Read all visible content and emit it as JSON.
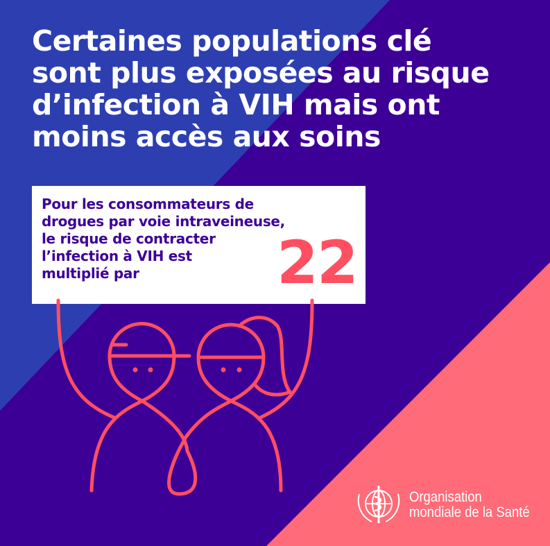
{
  "colors": {
    "blue": "#2d3fb0",
    "purple": "#3d0096",
    "pink": "#ff6b78",
    "accent": "#ff4f61"
  },
  "title": {
    "lines": [
      "Certaines populations clé",
      "sont plus exposées au risque",
      "d’infection à VIH mais ont",
      "moins accès aux soins"
    ]
  },
  "card": {
    "lines": [
      "Pour les consommateurs de",
      "drogues par voie intraveineuse,",
      "le risque de contracter",
      "l’infection à VIH est",
      "multiplié par"
    ],
    "number": "22"
  },
  "logo": {
    "icon": "who-emblem-icon",
    "name_lines": [
      "Organisation",
      "mondiale de la Santé"
    ]
  }
}
